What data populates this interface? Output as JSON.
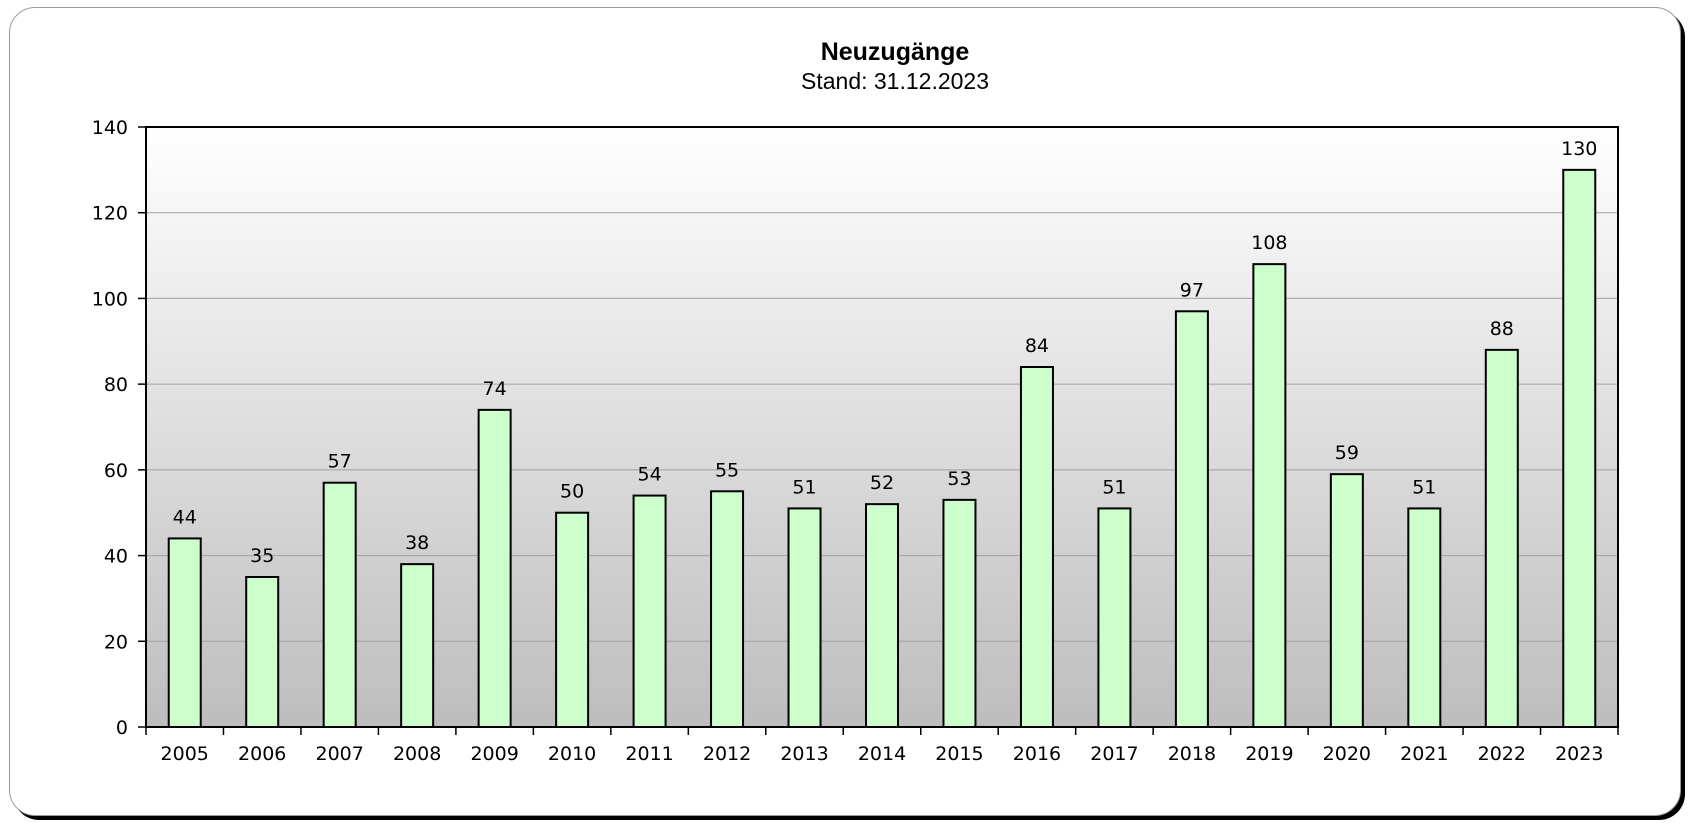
{
  "chart_data": {
    "type": "bar",
    "title": "Neuzugänge",
    "subtitle": "Stand: 31.12.2023",
    "xlabel": "",
    "ylabel": "",
    "categories": [
      "2005",
      "2006",
      "2007",
      "2008",
      "2009",
      "2010",
      "2011",
      "2012",
      "2013",
      "2014",
      "2015",
      "2016",
      "2017",
      "2018",
      "2019",
      "2020",
      "2021",
      "2022",
      "2023"
    ],
    "values": [
      44,
      35,
      57,
      38,
      74,
      50,
      54,
      55,
      51,
      52,
      53,
      84,
      51,
      97,
      108,
      59,
      51,
      88,
      130
    ],
    "ylim": [
      0,
      140
    ],
    "yticks": [
      0,
      20,
      40,
      60,
      80,
      100,
      120,
      140
    ],
    "grid": true,
    "legend": "none",
    "data_labels": true,
    "colors": {
      "bar_fill": "#ccffcc",
      "bar_stroke": "#000000",
      "plot_bg_top": "#ffffff",
      "plot_bg_bottom": "#bdbdbd",
      "grid": "#a0a0a0"
    }
  }
}
